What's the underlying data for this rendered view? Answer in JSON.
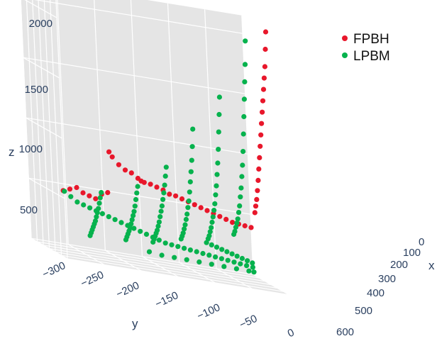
{
  "chart_data": {
    "type": "scatter3d",
    "axes": {
      "x": {
        "label": "x",
        "ticks": [
          "0",
          "100",
          "200",
          "300",
          "400",
          "500",
          "600"
        ],
        "range": [
          0,
          600
        ]
      },
      "y": {
        "label": "y",
        "ticks": [
          "−300",
          "−250",
          "−200",
          "−150",
          "−100",
          "−50",
          "0"
        ],
        "range": [
          -300,
          0
        ]
      },
      "z": {
        "label": "z",
        "ticks": [
          "500",
          "1000",
          "1500",
          "2000"
        ],
        "range": [
          0,
          2150
        ]
      }
    },
    "grid": true,
    "legend": {
      "placement": "top-right"
    },
    "series": [
      {
        "name": "FPBH",
        "color": "#e8172b",
        "points": [
          [
            20,
            -300,
            560
          ],
          [
            30,
            -290,
            580
          ],
          [
            40,
            -280,
            600
          ],
          [
            60,
            -270,
            560
          ],
          [
            80,
            -260,
            540
          ],
          [
            100,
            -250,
            520
          ],
          [
            120,
            -240,
            560
          ],
          [
            140,
            -230,
            580
          ],
          [
            150,
            -225,
            920
          ],
          [
            160,
            -220,
            880
          ],
          [
            180,
            -210,
            820
          ],
          [
            200,
            -200,
            780
          ],
          [
            220,
            -190,
            760
          ],
          [
            240,
            -180,
            720
          ],
          [
            250,
            -175,
            700
          ],
          [
            260,
            -170,
            690
          ],
          [
            280,
            -160,
            680
          ],
          [
            300,
            -150,
            660
          ],
          [
            320,
            -140,
            640
          ],
          [
            340,
            -130,
            610
          ],
          [
            360,
            -120,
            600
          ],
          [
            380,
            -110,
            580
          ],
          [
            400,
            -100,
            560
          ],
          [
            420,
            -90,
            540
          ],
          [
            440,
            -80,
            520
          ],
          [
            460,
            -70,
            500
          ],
          [
            480,
            -60,
            480
          ],
          [
            500,
            -50,
            460
          ],
          [
            520,
            -40,
            440
          ],
          [
            540,
            -30,
            420
          ],
          [
            560,
            -20,
            410
          ],
          [
            580,
            -10,
            400
          ],
          [
            600,
            0,
            390
          ],
          [
            80,
            -10,
            2150
          ],
          [
            100,
            -10,
            2000
          ],
          [
            120,
            -10,
            1850
          ],
          [
            140,
            -10,
            1750
          ],
          [
            160,
            -10,
            1650
          ],
          [
            180,
            -10,
            1550
          ],
          [
            200,
            -10,
            1450
          ],
          [
            220,
            -10,
            1350
          ],
          [
            240,
            -10,
            1250
          ],
          [
            260,
            -10,
            1150
          ],
          [
            280,
            -10,
            1050
          ],
          [
            300,
            -10,
            950
          ],
          [
            320,
            -10,
            850
          ],
          [
            340,
            -10,
            760
          ],
          [
            360,
            -10,
            680
          ],
          [
            380,
            -10,
            620
          ],
          [
            400,
            -10,
            560
          ]
        ]
      },
      {
        "name": "LPBM",
        "color": "#06b24d",
        "points": [
          [
            0,
            -300,
            560
          ],
          [
            20,
            -290,
            520
          ],
          [
            40,
            -280,
            480
          ],
          [
            60,
            -270,
            460
          ],
          [
            80,
            -260,
            440
          ],
          [
            100,
            -250,
            420
          ],
          [
            120,
            -240,
            400
          ],
          [
            140,
            -230,
            380
          ],
          [
            160,
            -220,
            360
          ],
          [
            180,
            -210,
            340
          ],
          [
            200,
            -200,
            320
          ],
          [
            220,
            -190,
            300
          ],
          [
            240,
            -180,
            280
          ],
          [
            260,
            -170,
            260
          ],
          [
            280,
            -160,
            240
          ],
          [
            300,
            -150,
            220
          ],
          [
            320,
            -140,
            200
          ],
          [
            340,
            -130,
            190
          ],
          [
            360,
            -120,
            180
          ],
          [
            380,
            -110,
            170
          ],
          [
            400,
            -100,
            160
          ],
          [
            420,
            -90,
            150
          ],
          [
            440,
            -80,
            140
          ],
          [
            460,
            -70,
            130
          ],
          [
            480,
            -60,
            120
          ],
          [
            500,
            -50,
            110
          ],
          [
            520,
            -40,
            100
          ],
          [
            540,
            -30,
            90
          ],
          [
            560,
            -20,
            80
          ],
          [
            580,
            -10,
            70
          ],
          [
            600,
            0,
            60
          ],
          [
            60,
            -40,
            2050
          ],
          [
            80,
            -40,
            1850
          ],
          [
            100,
            -40,
            1700
          ],
          [
            120,
            -40,
            1550
          ],
          [
            140,
            -40,
            1400
          ],
          [
            160,
            -40,
            1250
          ],
          [
            180,
            -40,
            1100
          ],
          [
            200,
            -40,
            980
          ],
          [
            220,
            -40,
            880
          ],
          [
            240,
            -40,
            780
          ],
          [
            260,
            -40,
            700
          ],
          [
            280,
            -40,
            620
          ],
          [
            300,
            -40,
            560
          ],
          [
            320,
            -40,
            500
          ],
          [
            340,
            -40,
            460
          ],
          [
            360,
            -40,
            420
          ],
          [
            380,
            -40,
            380
          ],
          [
            400,
            -40,
            350
          ],
          [
            40,
            -80,
            1550
          ],
          [
            60,
            -80,
            1400
          ],
          [
            80,
            -80,
            1250
          ],
          [
            100,
            -80,
            1100
          ],
          [
            120,
            -80,
            980
          ],
          [
            140,
            -80,
            880
          ],
          [
            160,
            -80,
            780
          ],
          [
            180,
            -80,
            700
          ],
          [
            200,
            -80,
            620
          ],
          [
            220,
            -80,
            560
          ],
          [
            240,
            -80,
            500
          ],
          [
            260,
            -80,
            450
          ],
          [
            280,
            -80,
            400
          ],
          [
            300,
            -80,
            360
          ],
          [
            320,
            -80,
            320
          ],
          [
            340,
            -80,
            290
          ],
          [
            20,
            -120,
            1250
          ],
          [
            40,
            -120,
            1100
          ],
          [
            60,
            -120,
            980
          ],
          [
            80,
            -120,
            880
          ],
          [
            100,
            -120,
            790
          ],
          [
            120,
            -120,
            700
          ],
          [
            140,
            -120,
            620
          ],
          [
            160,
            -120,
            560
          ],
          [
            180,
            -120,
            500
          ],
          [
            200,
            -120,
            450
          ],
          [
            220,
            -120,
            400
          ],
          [
            240,
            -120,
            360
          ],
          [
            260,
            -120,
            320
          ],
          [
            280,
            -120,
            290
          ],
          [
            300,
            -120,
            260
          ],
          [
            0,
            -160,
            900
          ],
          [
            20,
            -160,
            820
          ],
          [
            40,
            -160,
            740
          ],
          [
            60,
            -160,
            670
          ],
          [
            80,
            -160,
            610
          ],
          [
            100,
            -160,
            550
          ],
          [
            120,
            -160,
            500
          ],
          [
            140,
            -160,
            450
          ],
          [
            160,
            -160,
            400
          ],
          [
            180,
            -160,
            360
          ],
          [
            200,
            -160,
            320
          ],
          [
            220,
            -160,
            290
          ],
          [
            240,
            -160,
            260
          ],
          [
            260,
            -160,
            230
          ],
          [
            280,
            -160,
            200
          ],
          [
            0,
            -200,
            700
          ],
          [
            20,
            -200,
            640
          ],
          [
            40,
            -200,
            580
          ],
          [
            60,
            -200,
            520
          ],
          [
            80,
            -200,
            470
          ],
          [
            100,
            -200,
            430
          ],
          [
            120,
            -200,
            390
          ],
          [
            140,
            -200,
            350
          ],
          [
            160,
            -200,
            310
          ],
          [
            180,
            -200,
            280
          ],
          [
            200,
            -200,
            250
          ],
          [
            220,
            -200,
            220
          ],
          [
            240,
            -200,
            190
          ],
          [
            0,
            -250,
            600
          ],
          [
            20,
            -250,
            550
          ],
          [
            40,
            -250,
            500
          ],
          [
            60,
            -250,
            450
          ],
          [
            80,
            -250,
            410
          ],
          [
            100,
            -250,
            370
          ],
          [
            120,
            -250,
            330
          ],
          [
            140,
            -250,
            300
          ],
          [
            160,
            -250,
            270
          ],
          [
            180,
            -250,
            240
          ],
          [
            200,
            -250,
            210
          ],
          [
            220,
            -250,
            180
          ],
          [
            100,
            -180,
            150
          ],
          [
            140,
            -160,
            130
          ],
          [
            180,
            -140,
            120
          ],
          [
            220,
            -120,
            110
          ],
          [
            260,
            -100,
            100
          ],
          [
            300,
            -80,
            90
          ],
          [
            340,
            -60,
            80
          ],
          [
            380,
            -40,
            70
          ],
          [
            420,
            -20,
            60
          ],
          [
            460,
            -10,
            50
          ],
          [
            120,
            -100,
            300
          ],
          [
            160,
            -90,
            280
          ],
          [
            200,
            -80,
            260
          ],
          [
            240,
            -70,
            240
          ],
          [
            280,
            -60,
            220
          ],
          [
            320,
            -50,
            200
          ],
          [
            360,
            -40,
            180
          ],
          [
            400,
            -30,
            160
          ],
          [
            440,
            -20,
            140
          ],
          [
            480,
            -10,
            120
          ]
        ]
      }
    ]
  }
}
